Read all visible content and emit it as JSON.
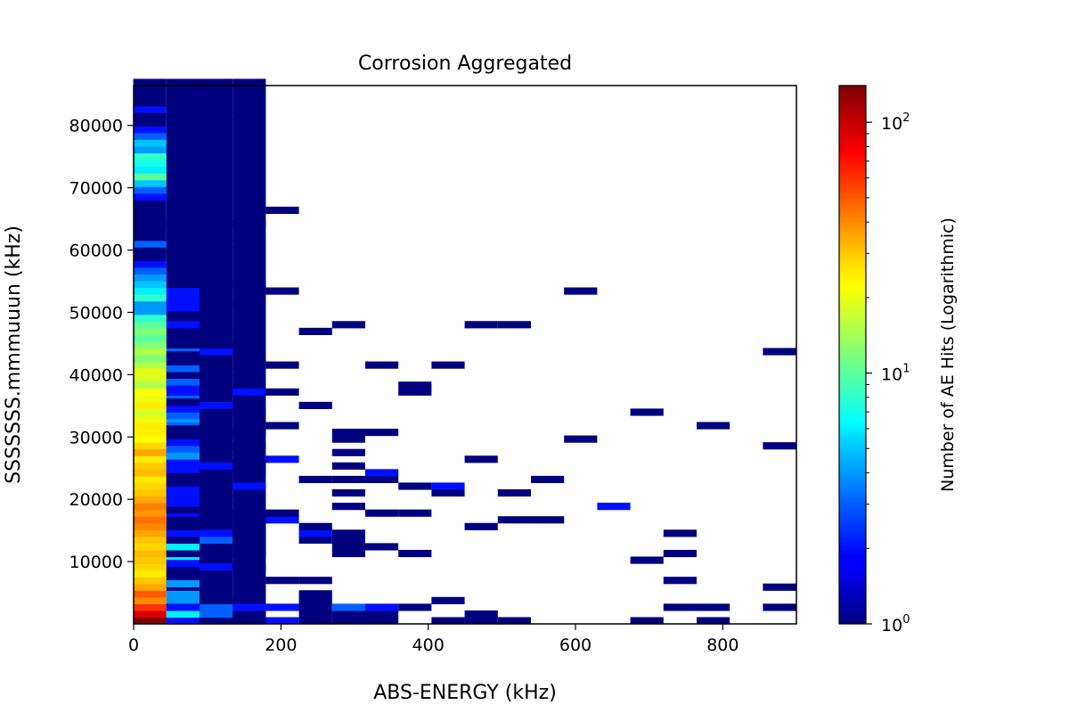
{
  "chart_data": {
    "type": "heatmap",
    "title": "Corrosion Aggregated",
    "xlabel": "ABS-ENERGY (kHz)",
    "ylabel": "SSSSSSS.mmmuuun (kHz)",
    "xlim": [
      0,
      900
    ],
    "ylim": [
      0,
      86400
    ],
    "x_bin_width": 45,
    "y_bin_width": 1080,
    "xticks": [
      {
        "value": 0,
        "label": "0"
      },
      {
        "value": 200,
        "label": "200"
      },
      {
        "value": 400,
        "label": "400"
      },
      {
        "value": 600,
        "label": "600"
      },
      {
        "value": 800,
        "label": "800"
      }
    ],
    "yticks": [
      {
        "value": 10000,
        "label": "10000"
      },
      {
        "value": 20000,
        "label": "20000"
      },
      {
        "value": 30000,
        "label": "30000"
      },
      {
        "value": 40000,
        "label": "40000"
      },
      {
        "value": 50000,
        "label": "50000"
      },
      {
        "value": 60000,
        "label": "60000"
      },
      {
        "value": 70000,
        "label": "70000"
      },
      {
        "value": 80000,
        "label": "80000"
      }
    ],
    "colorbar": {
      "label": "Number of AE Hits (Logarithmic)",
      "scale": "log",
      "colormap": "jet",
      "range": [
        1,
        140
      ],
      "ticks": [
        {
          "value": 1,
          "base": "10",
          "exp": "0"
        },
        {
          "value": 10,
          "base": "10",
          "exp": "1"
        },
        {
          "value": 100,
          "base": "10",
          "exp": "2"
        }
      ]
    },
    "columns": [
      {
        "x": 22,
        "counts": [
          140,
          90,
          60,
          40,
          50,
          35,
          30,
          25,
          28,
          30,
          32,
          28,
          30,
          35,
          40,
          45,
          38,
          42,
          35,
          30,
          28,
          25,
          32,
          30,
          25,
          35,
          28,
          22,
          24,
          25,
          20,
          18,
          25,
          20,
          22,
          15,
          18,
          20,
          15,
          12,
          15,
          12,
          10,
          12,
          10,
          8,
          4,
          4,
          8,
          6,
          5,
          4,
          3,
          2,
          1,
          1,
          3,
          1,
          1,
          1,
          1,
          1,
          1,
          2,
          3,
          5,
          10,
          6,
          7,
          8,
          4,
          5,
          3,
          2,
          1,
          1,
          2,
          1,
          1,
          1,
          1
        ]
      },
      {
        "x": 67,
        "counts": [
          2,
          6,
          2,
          4,
          4,
          1,
          1,
          2,
          1,
          6,
          1,
          1,
          2,
          3,
          3,
          1,
          2,
          1,
          1,
          1,
          1,
          2,
          1,
          1,
          1,
          1,
          2,
          2,
          2,
          3,
          4,
          3,
          5,
          3,
          2,
          1,
          1,
          1,
          2,
          1,
          3,
          1,
          1,
          1,
          1,
          1,
          1,
          1,
          2,
          2,
          1,
          1,
          1,
          1,
          1,
          1,
          1,
          1,
          1,
          1,
          1,
          1,
          1,
          1,
          1,
          1,
          1,
          1,
          1,
          1,
          1,
          1,
          1,
          1,
          1,
          1,
          1,
          1,
          1,
          1,
          1
        ]
      },
      {
        "x": 112,
        "counts": [
          1,
          3,
          3,
          3,
          1,
          1,
          1,
          1,
          2,
          1,
          1,
          1,
          3,
          3,
          1,
          1,
          1,
          1,
          1,
          1,
          1,
          1,
          1,
          1,
          1,
          1,
          1,
          1,
          1,
          1,
          1,
          1,
          1,
          1,
          1,
          1,
          1,
          1,
          1,
          1,
          1,
          1,
          1,
          1,
          1,
          1,
          1,
          1,
          1,
          1,
          1,
          1,
          1,
          1,
          1,
          1,
          1,
          1,
          1,
          1,
          1,
          1,
          1,
          1,
          1,
          1,
          1,
          1,
          1,
          1,
          1,
          1,
          1,
          1,
          1,
          1,
          1,
          1,
          1,
          1,
          1
        ]
      },
      {
        "x": 157,
        "counts": [
          1,
          1,
          2,
          1,
          1,
          1,
          1,
          1,
          1,
          1,
          1,
          1,
          1,
          1,
          1,
          1,
          1,
          1,
          1,
          1,
          1,
          1,
          1,
          1,
          1,
          1,
          1,
          1,
          1,
          1,
          1,
          1,
          1,
          1,
          1,
          1,
          1,
          1,
          1,
          1,
          1,
          1,
          1,
          1,
          1,
          1,
          1,
          1,
          1,
          1,
          1,
          1,
          1,
          1,
          1,
          1,
          1,
          1,
          1,
          1,
          1,
          1,
          1,
          1,
          1,
          1,
          1,
          1,
          1,
          1,
          1,
          1,
          1,
          1,
          1,
          1,
          1,
          1,
          1,
          1,
          1
        ]
      }
    ],
    "cells": [
      {
        "x": 67,
        "y": 540,
        "c": 2
      },
      {
        "x": 67,
        "y": 1620,
        "c": 6
      },
      {
        "x": 67,
        "y": 2700,
        "c": 2
      },
      {
        "x": 67,
        "y": 6480,
        "c": 4
      },
      {
        "x": 67,
        "y": 8100,
        "c": 1
      },
      {
        "x": 67,
        "y": 9720,
        "c": 2
      },
      {
        "x": 67,
        "y": 11340,
        "c": 1
      },
      {
        "x": 67,
        "y": 12420,
        "c": 6
      },
      {
        "x": 67,
        "y": 13500,
        "c": 1
      },
      {
        "x": 67,
        "y": 14580,
        "c": 2
      },
      {
        "x": 67,
        "y": 15660,
        "c": 1
      },
      {
        "x": 67,
        "y": 18360,
        "c": 1
      },
      {
        "x": 67,
        "y": 19440,
        "c": 2
      },
      {
        "x": 67,
        "y": 20520,
        "c": 2
      },
      {
        "x": 67,
        "y": 21600,
        "c": 2
      },
      {
        "x": 67,
        "y": 22680,
        "c": 1
      },
      {
        "x": 67,
        "y": 23760,
        "c": 1
      },
      {
        "x": 67,
        "y": 24840,
        "c": 2
      },
      {
        "x": 67,
        "y": 25920,
        "c": 2
      },
      {
        "x": 67,
        "y": 27000,
        "c": 4
      },
      {
        "x": 67,
        "y": 28080,
        "c": 3
      },
      {
        "x": 67,
        "y": 29160,
        "c": 2
      },
      {
        "x": 67,
        "y": 30240,
        "c": 1
      },
      {
        "x": 67,
        "y": 31320,
        "c": 1
      },
      {
        "x": 67,
        "y": 33480,
        "c": 3
      },
      {
        "x": 67,
        "y": 34560,
        "c": 2
      },
      {
        "x": 67,
        "y": 35640,
        "c": 1
      },
      {
        "x": 67,
        "y": 37800,
        "c": 2
      },
      {
        "x": 67,
        "y": 38880,
        "c": 3
      },
      {
        "x": 67,
        "y": 39960,
        "c": 1
      },
      {
        "x": 67,
        "y": 41040,
        "c": 3
      },
      {
        "x": 67,
        "y": 42120,
        "c": 1
      },
      {
        "x": 67,
        "y": 43200,
        "c": 1
      },
      {
        "x": 67,
        "y": 48060,
        "c": 2
      },
      {
        "x": 67,
        "y": 50760,
        "c": 2
      },
      {
        "x": 67,
        "y": 51840,
        "c": 2
      },
      {
        "x": 67,
        "y": 64260,
        "c": 1
      },
      {
        "x": 112,
        "y": 540,
        "c": 1
      },
      {
        "x": 112,
        "y": 1620,
        "c": 3
      },
      {
        "x": 112,
        "y": 2700,
        "c": 3
      },
      {
        "x": 112,
        "y": 3780,
        "c": 1
      },
      {
        "x": 112,
        "y": 9180,
        "c": 2
      },
      {
        "x": 112,
        "y": 13500,
        "c": 3
      },
      {
        "x": 112,
        "y": 14580,
        "c": 2
      },
      {
        "x": 112,
        "y": 17820,
        "c": 1
      },
      {
        "x": 112,
        "y": 23220,
        "c": 1
      },
      {
        "x": 112,
        "y": 24300,
        "c": 1
      },
      {
        "x": 112,
        "y": 25380,
        "c": 2
      },
      {
        "x": 112,
        "y": 30240,
        "c": 1
      },
      {
        "x": 112,
        "y": 31320,
        "c": 1
      },
      {
        "x": 112,
        "y": 35100,
        "c": 2
      },
      {
        "x": 112,
        "y": 36720,
        "c": 1
      },
      {
        "x": 112,
        "y": 37800,
        "c": 1
      },
      {
        "x": 112,
        "y": 43740,
        "c": 2
      },
      {
        "x": 112,
        "y": 44820,
        "c": 1
      },
      {
        "x": 112,
        "y": 46980,
        "c": 1
      },
      {
        "x": 112,
        "y": 51300,
        "c": 1
      },
      {
        "x": 157,
        "y": 540,
        "c": 1
      },
      {
        "x": 157,
        "y": 1620,
        "c": 1
      },
      {
        "x": 157,
        "y": 2700,
        "c": 2
      },
      {
        "x": 157,
        "y": 9180,
        "c": 1
      },
      {
        "x": 157,
        "y": 11340,
        "c": 1
      },
      {
        "x": 157,
        "y": 12420,
        "c": 1
      },
      {
        "x": 157,
        "y": 13500,
        "c": 1
      },
      {
        "x": 157,
        "y": 14580,
        "c": 1
      },
      {
        "x": 157,
        "y": 15660,
        "c": 1
      },
      {
        "x": 157,
        "y": 16740,
        "c": 1
      },
      {
        "x": 157,
        "y": 17820,
        "c": 1
      },
      {
        "x": 157,
        "y": 22140,
        "c": 2
      },
      {
        "x": 157,
        "y": 24840,
        "c": 1
      },
      {
        "x": 157,
        "y": 25920,
        "c": 1
      },
      {
        "x": 157,
        "y": 28620,
        "c": 1
      },
      {
        "x": 157,
        "y": 30780,
        "c": 1
      },
      {
        "x": 157,
        "y": 34020,
        "c": 1
      },
      {
        "x": 157,
        "y": 37260,
        "c": 2
      },
      {
        "x": 157,
        "y": 54540,
        "c": 1
      },
      {
        "x": 157,
        "y": 64260,
        "c": 1
      },
      {
        "x": 202,
        "y": 540,
        "c": 2
      },
      {
        "x": 202,
        "y": 2700,
        "c": 2
      },
      {
        "x": 202,
        "y": 7020,
        "c": 1
      },
      {
        "x": 202,
        "y": 16740,
        "c": 2
      },
      {
        "x": 202,
        "y": 17820,
        "c": 1
      },
      {
        "x": 202,
        "y": 26460,
        "c": 2
      },
      {
        "x": 202,
        "y": 31860,
        "c": 1
      },
      {
        "x": 202,
        "y": 37260,
        "c": 1
      },
      {
        "x": 202,
        "y": 41580,
        "c": 1
      },
      {
        "x": 202,
        "y": 53460,
        "c": 1
      },
      {
        "x": 202,
        "y": 66420,
        "c": 1
      },
      {
        "x": 247,
        "y": 540,
        "c": 1
      },
      {
        "x": 247,
        "y": 1620,
        "c": 1
      },
      {
        "x": 247,
        "y": 2700,
        "c": 1
      },
      {
        "x": 247,
        "y": 3780,
        "c": 1
      },
      {
        "x": 247,
        "y": 4860,
        "c": 1
      },
      {
        "x": 247,
        "y": 7020,
        "c": 1
      },
      {
        "x": 247,
        "y": 13500,
        "c": 1
      },
      {
        "x": 247,
        "y": 14580,
        "c": 2
      },
      {
        "x": 247,
        "y": 15660,
        "c": 1
      },
      {
        "x": 247,
        "y": 23220,
        "c": 1
      },
      {
        "x": 247,
        "y": 35100,
        "c": 1
      },
      {
        "x": 247,
        "y": 46980,
        "c": 1
      },
      {
        "x": 292,
        "y": 540,
        "c": 1
      },
      {
        "x": 292,
        "y": 1620,
        "c": 1
      },
      {
        "x": 292,
        "y": 2700,
        "c": 3
      },
      {
        "x": 292,
        "y": 11340,
        "c": 1
      },
      {
        "x": 292,
        "y": 12420,
        "c": 1
      },
      {
        "x": 292,
        "y": 13500,
        "c": 1
      },
      {
        "x": 292,
        "y": 14580,
        "c": 1
      },
      {
        "x": 292,
        "y": 18900,
        "c": 1
      },
      {
        "x": 292,
        "y": 21060,
        "c": 1
      },
      {
        "x": 292,
        "y": 23220,
        "c": 1
      },
      {
        "x": 292,
        "y": 25380,
        "c": 1
      },
      {
        "x": 292,
        "y": 27540,
        "c": 1
      },
      {
        "x": 292,
        "y": 29700,
        "c": 1
      },
      {
        "x": 292,
        "y": 30780,
        "c": 1
      },
      {
        "x": 292,
        "y": 48060,
        "c": 1
      },
      {
        "x": 337,
        "y": 540,
        "c": 1
      },
      {
        "x": 337,
        "y": 1620,
        "c": 1
      },
      {
        "x": 337,
        "y": 2700,
        "c": 2
      },
      {
        "x": 337,
        "y": 12420,
        "c": 1
      },
      {
        "x": 337,
        "y": 17820,
        "c": 1
      },
      {
        "x": 337,
        "y": 23220,
        "c": 1
      },
      {
        "x": 337,
        "y": 24300,
        "c": 2
      },
      {
        "x": 337,
        "y": 30780,
        "c": 1
      },
      {
        "x": 337,
        "y": 41580,
        "c": 1
      },
      {
        "x": 382,
        "y": 2700,
        "c": 1
      },
      {
        "x": 382,
        "y": 11340,
        "c": 1
      },
      {
        "x": 382,
        "y": 17820,
        "c": 1
      },
      {
        "x": 382,
        "y": 22140,
        "c": 1
      },
      {
        "x": 382,
        "y": 37260,
        "c": 1
      },
      {
        "x": 382,
        "y": 38340,
        "c": 1
      },
      {
        "x": 427,
        "y": 540,
        "c": 1
      },
      {
        "x": 427,
        "y": 3780,
        "c": 1
      },
      {
        "x": 427,
        "y": 21060,
        "c": 1
      },
      {
        "x": 427,
        "y": 22140,
        "c": 2
      },
      {
        "x": 427,
        "y": 41580,
        "c": 1
      },
      {
        "x": 472,
        "y": 540,
        "c": 1
      },
      {
        "x": 472,
        "y": 1620,
        "c": 1
      },
      {
        "x": 472,
        "y": 15660,
        "c": 1
      },
      {
        "x": 472,
        "y": 26460,
        "c": 1
      },
      {
        "x": 472,
        "y": 48060,
        "c": 1
      },
      {
        "x": 517,
        "y": 540,
        "c": 1
      },
      {
        "x": 517,
        "y": 16740,
        "c": 1
      },
      {
        "x": 517,
        "y": 21060,
        "c": 1
      },
      {
        "x": 517,
        "y": 48060,
        "c": 1
      },
      {
        "x": 562,
        "y": 16740,
        "c": 1
      },
      {
        "x": 562,
        "y": 23220,
        "c": 1
      },
      {
        "x": 607,
        "y": 29700,
        "c": 1
      },
      {
        "x": 607,
        "y": 53460,
        "c": 1
      },
      {
        "x": 652,
        "y": 18900,
        "c": 2
      },
      {
        "x": 697,
        "y": 540,
        "c": 1
      },
      {
        "x": 697,
        "y": 10260,
        "c": 1
      },
      {
        "x": 697,
        "y": 34020,
        "c": 1
      },
      {
        "x": 742,
        "y": 2700,
        "c": 1
      },
      {
        "x": 742,
        "y": 7020,
        "c": 1
      },
      {
        "x": 742,
        "y": 11340,
        "c": 1
      },
      {
        "x": 742,
        "y": 14580,
        "c": 1
      },
      {
        "x": 787,
        "y": 540,
        "c": 1
      },
      {
        "x": 787,
        "y": 2700,
        "c": 1
      },
      {
        "x": 787,
        "y": 31860,
        "c": 1
      },
      {
        "x": 877,
        "y": 2700,
        "c": 1
      },
      {
        "x": 877,
        "y": 5940,
        "c": 1
      },
      {
        "x": 877,
        "y": 28620,
        "c": 1
      },
      {
        "x": 877,
        "y": 43740,
        "c": 1
      }
    ]
  }
}
